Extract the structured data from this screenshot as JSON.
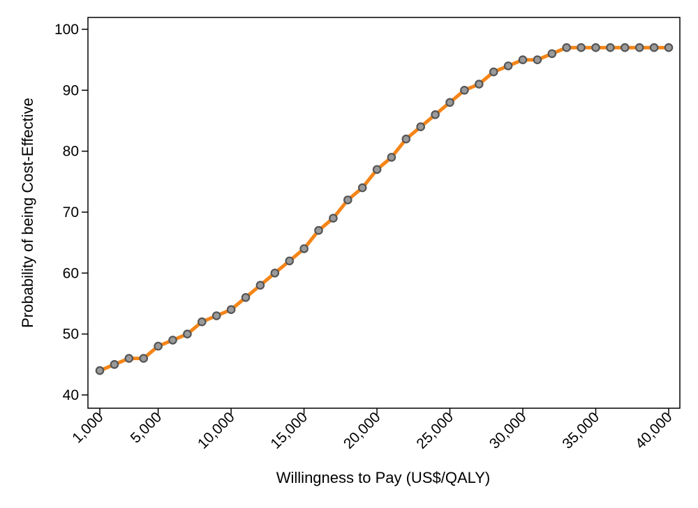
{
  "chart_data": {
    "type": "line",
    "title": "",
    "xlabel": "Willingness to Pay (US$/QALY)",
    "ylabel": "Probability of being Cost-Effective",
    "xlim": [
      1000,
      40000
    ],
    "ylim": [
      40,
      100
    ],
    "grid": false,
    "x_ticks": [
      1000,
      5000,
      10000,
      15000,
      20000,
      25000,
      30000,
      35000,
      40000
    ],
    "x_tick_labels": [
      "1,000",
      "5,000",
      "10,000",
      "15,000",
      "20,000",
      "25,000",
      "30,000",
      "35,000",
      "40,000"
    ],
    "y_ticks": [
      40,
      50,
      60,
      70,
      80,
      90,
      100
    ],
    "y_tick_labels": [
      "40",
      "50",
      "60",
      "70",
      "80",
      "90",
      "100"
    ],
    "line_color": "#f58518",
    "marker_stroke": "#555555",
    "marker_fill": "#9a9a9a",
    "series": [
      {
        "x": [
          1000,
          2000,
          3000,
          4000,
          5000,
          6000,
          7000,
          8000,
          9000,
          10000,
          11000,
          12000,
          13000,
          14000,
          15000,
          16000,
          17000,
          18000,
          19000,
          20000,
          21000,
          22000,
          23000,
          24000,
          25000,
          26000,
          27000,
          28000,
          29000,
          30000,
          31000,
          32000,
          33000,
          34000,
          35000,
          36000,
          37000,
          38000,
          39000,
          40000
        ],
        "values": [
          44,
          45,
          46,
          46,
          48,
          49,
          50,
          52,
          53,
          54,
          56,
          58,
          60,
          62,
          64,
          67,
          69,
          72,
          74,
          77,
          79,
          82,
          84,
          86,
          88,
          90,
          91,
          93,
          94,
          95,
          95,
          96,
          97,
          97,
          97,
          97,
          97,
          97,
          97,
          97
        ]
      }
    ]
  }
}
